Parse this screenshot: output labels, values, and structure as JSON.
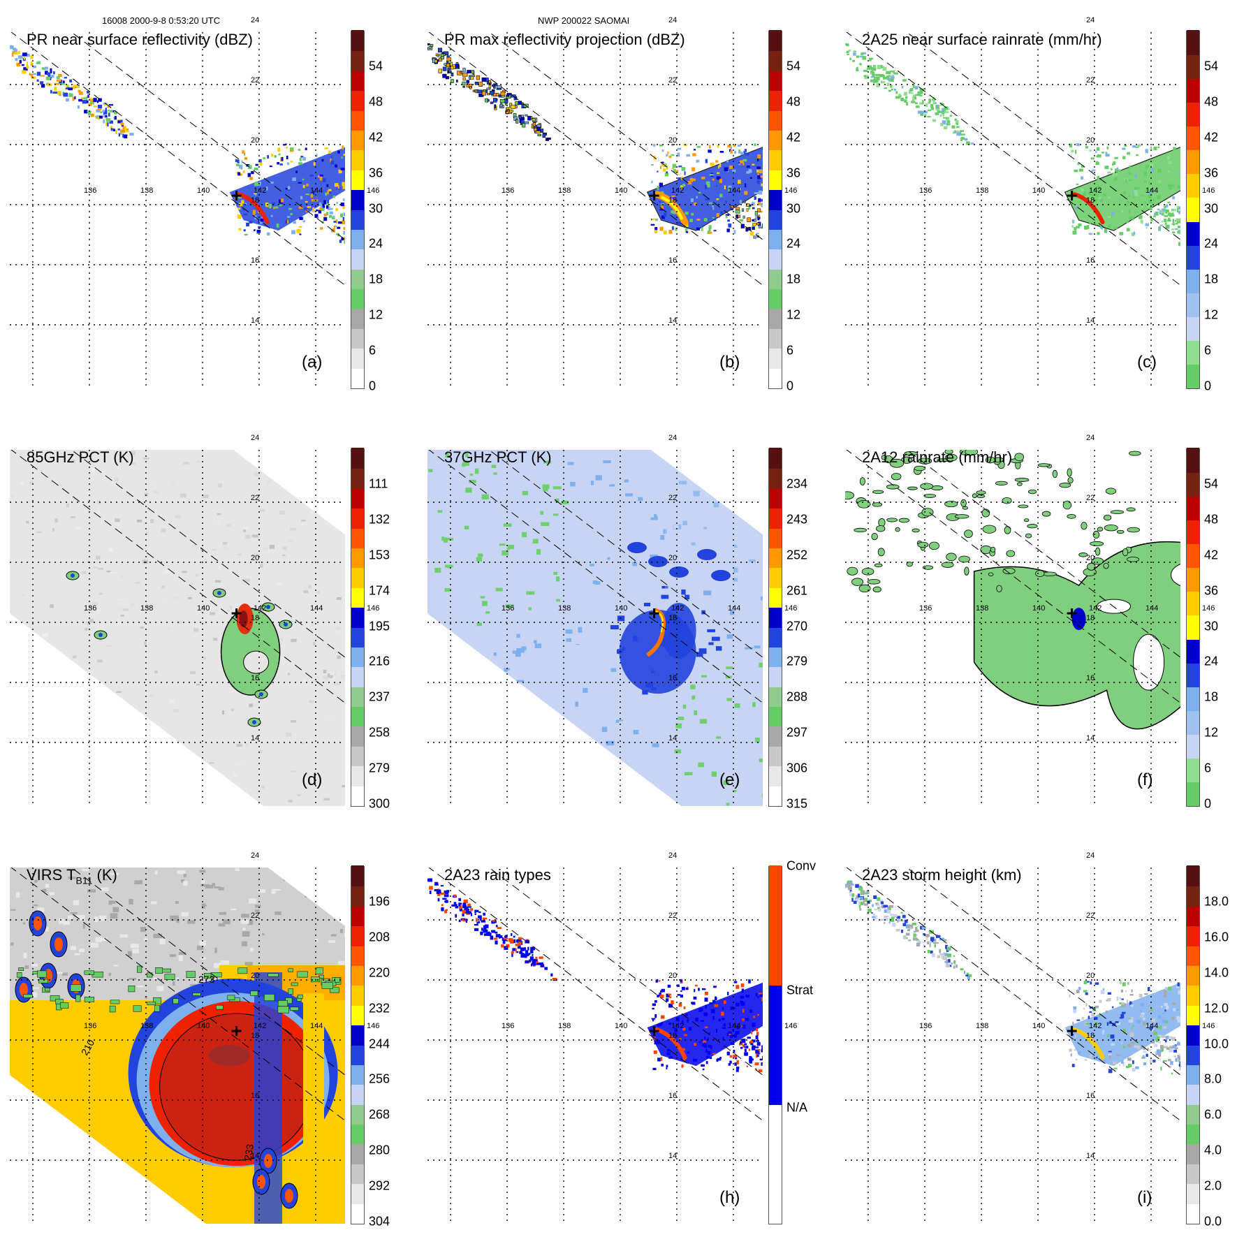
{
  "header": {
    "orbit_time": "16008 2000-9-8 0:53:20 UTC",
    "storm": "NWP 200022 SAOMAI"
  },
  "grid": {
    "lon_labels": [
      "136",
      "138",
      "140",
      "142",
      "144",
      "146"
    ],
    "lat_labels": [
      "24",
      "22",
      "20",
      "18",
      "16",
      "14"
    ]
  },
  "panels": [
    {
      "id": "a",
      "title": "PR near surface reflectivity (dBZ)",
      "label": "(a)",
      "ticks": [
        "54",
        "48",
        "42",
        "36",
        "30",
        "24",
        "18",
        "12",
        "6",
        "0"
      ],
      "bg": "none",
      "field": "reflectivity",
      "colorbar": [
        "#ffffff",
        "#e8e8e8",
        "#c8c8c8",
        "#a8a8a8",
        "#66cc66",
        "#90cc90",
        "#c8d4f4",
        "#7fb0ee",
        "#2244dd",
        "#0000cc",
        "#ffff00",
        "#ffcc00",
        "#ff9900",
        "#ff5500",
        "#ee2200",
        "#bb0000",
        "#772211",
        "#551111"
      ]
    },
    {
      "id": "b",
      "title": "PR max reflectivity projection (dBZ)",
      "label": "(b)",
      "ticks": [
        "54",
        "48",
        "42",
        "36",
        "30",
        "24",
        "18",
        "12",
        "6",
        "0"
      ],
      "bg": "none",
      "field": "maxrefl",
      "colorbar": [
        "#ffffff",
        "#e8e8e8",
        "#c8c8c8",
        "#a8a8a8",
        "#66cc66",
        "#90cc90",
        "#c8d4f4",
        "#7fb0ee",
        "#2244dd",
        "#0000cc",
        "#ffff00",
        "#ffcc00",
        "#ff9900",
        "#ff5500",
        "#ee2200",
        "#bb0000",
        "#772211",
        "#551111"
      ]
    },
    {
      "id": "c",
      "title": "2A25 near surface rainrate (mm/hr)",
      "label": "(c)",
      "ticks": [
        "54",
        "48",
        "42",
        "36",
        "30",
        "24",
        "18",
        "12",
        "6",
        "0"
      ],
      "bg": "none",
      "field": "rainrate",
      "colorbar": [
        "#66cc66",
        "#90dd90",
        "#c8d4f4",
        "#a0c0f0",
        "#7fb0ee",
        "#2244dd",
        "#0000cc",
        "#ffff00",
        "#ffcc00",
        "#ff9900",
        "#ff5500",
        "#ee2200",
        "#bb0000",
        "#772211",
        "#551111"
      ]
    },
    {
      "id": "d",
      "title": "85GHz PCT (K)",
      "label": "(d)",
      "ticks": [
        "111",
        "132",
        "153",
        "174",
        "195",
        "216",
        "237",
        "258",
        "279",
        "300"
      ],
      "bg": "gray",
      "field": "pct85",
      "colorbar": [
        "#ffffff",
        "#e8e8e8",
        "#c8c8c8",
        "#a8a8a8",
        "#66cc66",
        "#90cc90",
        "#c8d4f4",
        "#7fb0ee",
        "#2244dd",
        "#0000cc",
        "#ffff00",
        "#ffcc00",
        "#ff9900",
        "#ff5500",
        "#ee2200",
        "#bb0000",
        "#772211",
        "#551111"
      ]
    },
    {
      "id": "e",
      "title": "37GHz PCT (K)",
      "label": "(e)",
      "ticks": [
        "234",
        "243",
        "252",
        "261",
        "270",
        "279",
        "288",
        "297",
        "306",
        "315"
      ],
      "bg": "blue",
      "field": "pct37",
      "colorbar": [
        "#ffffff",
        "#e8e8e8",
        "#c8c8c8",
        "#a8a8a8",
        "#66cc66",
        "#90cc90",
        "#c8d4f4",
        "#7fb0ee",
        "#2244dd",
        "#0000cc",
        "#ffff00",
        "#ffcc00",
        "#ff9900",
        "#ff5500",
        "#ee2200",
        "#bb0000",
        "#772211",
        "#551111"
      ]
    },
    {
      "id": "f",
      "title": "2A12 rainrate (mm/hr)",
      "label": "(f)",
      "ticks": [
        "54",
        "48",
        "42",
        "36",
        "30",
        "24",
        "18",
        "12",
        "6",
        "0"
      ],
      "bg": "none",
      "field": "rain12",
      "colorbar": [
        "#66cc66",
        "#90dd90",
        "#c8d4f4",
        "#a0c0f0",
        "#7fb0ee",
        "#2244dd",
        "#0000cc",
        "#ffff00",
        "#ffcc00",
        "#ff9900",
        "#ff5500",
        "#ee2200",
        "#bb0000",
        "#772211",
        "#551111"
      ]
    },
    {
      "id": "g",
      "title": "VIRS T",
      "title_sub": "B11",
      "title_tail": " (K)",
      "label": "",
      "ticks": [
        "196",
        "208",
        "220",
        "232",
        "244",
        "256",
        "268",
        "280",
        "292",
        "304"
      ],
      "bg": "ir",
      "field": "ir",
      "colorbar": [
        "#ffffff",
        "#e8e8e8",
        "#c8c8c8",
        "#a8a8a8",
        "#66cc66",
        "#90cc90",
        "#c8d4f4",
        "#7fb0ee",
        "#2244dd",
        "#0000cc",
        "#ffff00",
        "#ffcc00",
        "#ff9900",
        "#ff5500",
        "#ee2200",
        "#bb0000",
        "#772211",
        "#551111"
      ]
    },
    {
      "id": "h",
      "title": "2A23 rain types",
      "label": "(h)",
      "ticks": [
        "Conv",
        "Strat",
        "N/A"
      ],
      "bg": "none",
      "field": "types",
      "colorbar": [
        "#ffffff",
        "#0000ee",
        "#ff4400"
      ]
    },
    {
      "id": "i",
      "title": "2A23 storm height (km)",
      "label": "(i)",
      "ticks": [
        "18.0",
        "16.0",
        "14.0",
        "12.0",
        "10.0",
        "8.0",
        "6.0",
        "4.0",
        "2.0",
        "0.0"
      ],
      "bg": "none",
      "field": "height",
      "colorbar": [
        "#ffffff",
        "#e8e8e8",
        "#c8c8c8",
        "#a8a8a8",
        "#66cc66",
        "#90cc90",
        "#c8d4f4",
        "#7fb0ee",
        "#2244dd",
        "#0000cc",
        "#ffff00",
        "#ffcc00",
        "#ff9900",
        "#ff5500",
        "#ee2200",
        "#bb0000",
        "#772211",
        "#551111"
      ]
    }
  ],
  "contour_labels": {
    "ir_a": "273",
    "ir_b": "210",
    "ir_c": "233"
  }
}
